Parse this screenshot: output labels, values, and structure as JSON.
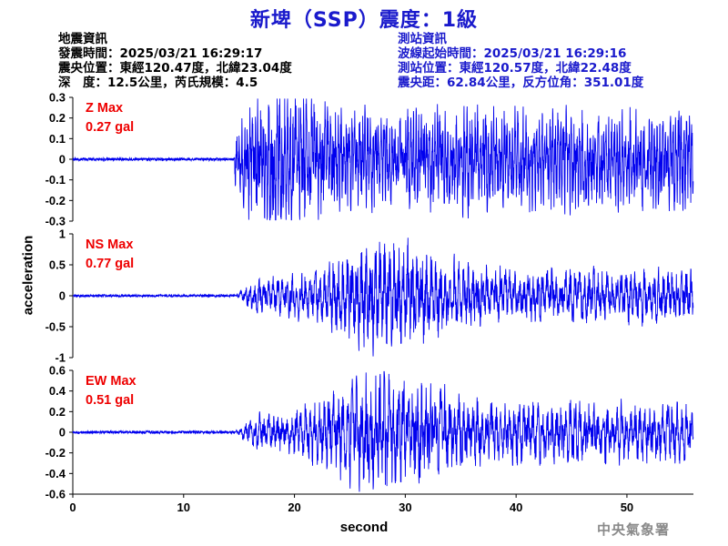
{
  "title": "新埤（SSP）震度：1級",
  "quake_info": {
    "heading": "地震資訊",
    "time": "發震時間：2025/03/21 16:29:17",
    "epicenter": "震央位置：東經120.47度，北緯23.04度",
    "depth_magnitude": "深　度：12.5公里，芮氏規模：4.5"
  },
  "station_info": {
    "heading": "測站資訊",
    "wave_start": "波線起始時間：2025/03/21 16:29:16",
    "location": "測站位置：東經120.57度，北緯22.48度",
    "distance_azimuth": "震央距：62.84公里，反方位角：351.01度"
  },
  "agency": "中央氣象署",
  "chart_data": [
    {
      "type": "line",
      "component": "Z",
      "label_line1": "Z Max",
      "label_line2": "0.27 gal",
      "max_gal": 0.27,
      "ylim": [
        -0.3,
        0.3
      ],
      "yticks": [
        -0.3,
        -0.2,
        -0.1,
        0,
        0.1,
        0.2,
        0.3
      ],
      "ytick_labels": [
        "-0.3",
        "-0.2",
        "-0.1",
        "0",
        "0.1",
        "0.2",
        "0.3"
      ],
      "arrival_s": 14.6,
      "peak_s": 18,
      "min_value": -0.27,
      "xlim": [
        0,
        56
      ],
      "color": "#0000ee"
    },
    {
      "type": "line",
      "component": "NS",
      "label_line1": "NS Max",
      "label_line2": "0.77 gal",
      "max_gal": 0.77,
      "ylim": [
        -1,
        1
      ],
      "yticks": [
        -1,
        -0.5,
        0,
        0.5,
        1
      ],
      "ytick_labels": [
        "-1",
        "-0.5",
        "0",
        "0.5",
        "1"
      ],
      "arrival_s": 14.6,
      "peak_s": 28.3,
      "min_value": -0.77,
      "xlim": [
        0,
        56
      ],
      "color": "#0000ee"
    },
    {
      "type": "line",
      "component": "EW",
      "label_line1": "EW Max",
      "label_line2": "0.51 gal",
      "max_gal": 0.51,
      "ylim": [
        -0.6,
        0.6
      ],
      "yticks": [
        -0.6,
        -0.4,
        -0.2,
        0,
        0.2,
        0.4,
        0.6
      ],
      "ytick_labels": [
        "-0.6",
        "-0.4",
        "-0.2",
        "0",
        "0.2",
        "0.4",
        "0.6"
      ],
      "arrival_s": 14.6,
      "peak_s": 28.2,
      "min_value": -0.51,
      "xlim": [
        0,
        56
      ],
      "color": "#0000ee"
    }
  ],
  "x_axis": {
    "label": "second",
    "ticks": [
      0,
      10,
      20,
      30,
      40,
      50
    ],
    "tick_labels": [
      "0",
      "10",
      "20",
      "30",
      "40",
      "50"
    ],
    "range": [
      0,
      56
    ]
  },
  "y_axis_label": "acceleration",
  "colors": {
    "title": "#1a1acc",
    "station": "#1a1acc",
    "trace": "#0000ee",
    "max_label": "#ee0000",
    "agency": "#8a8a8a"
  }
}
